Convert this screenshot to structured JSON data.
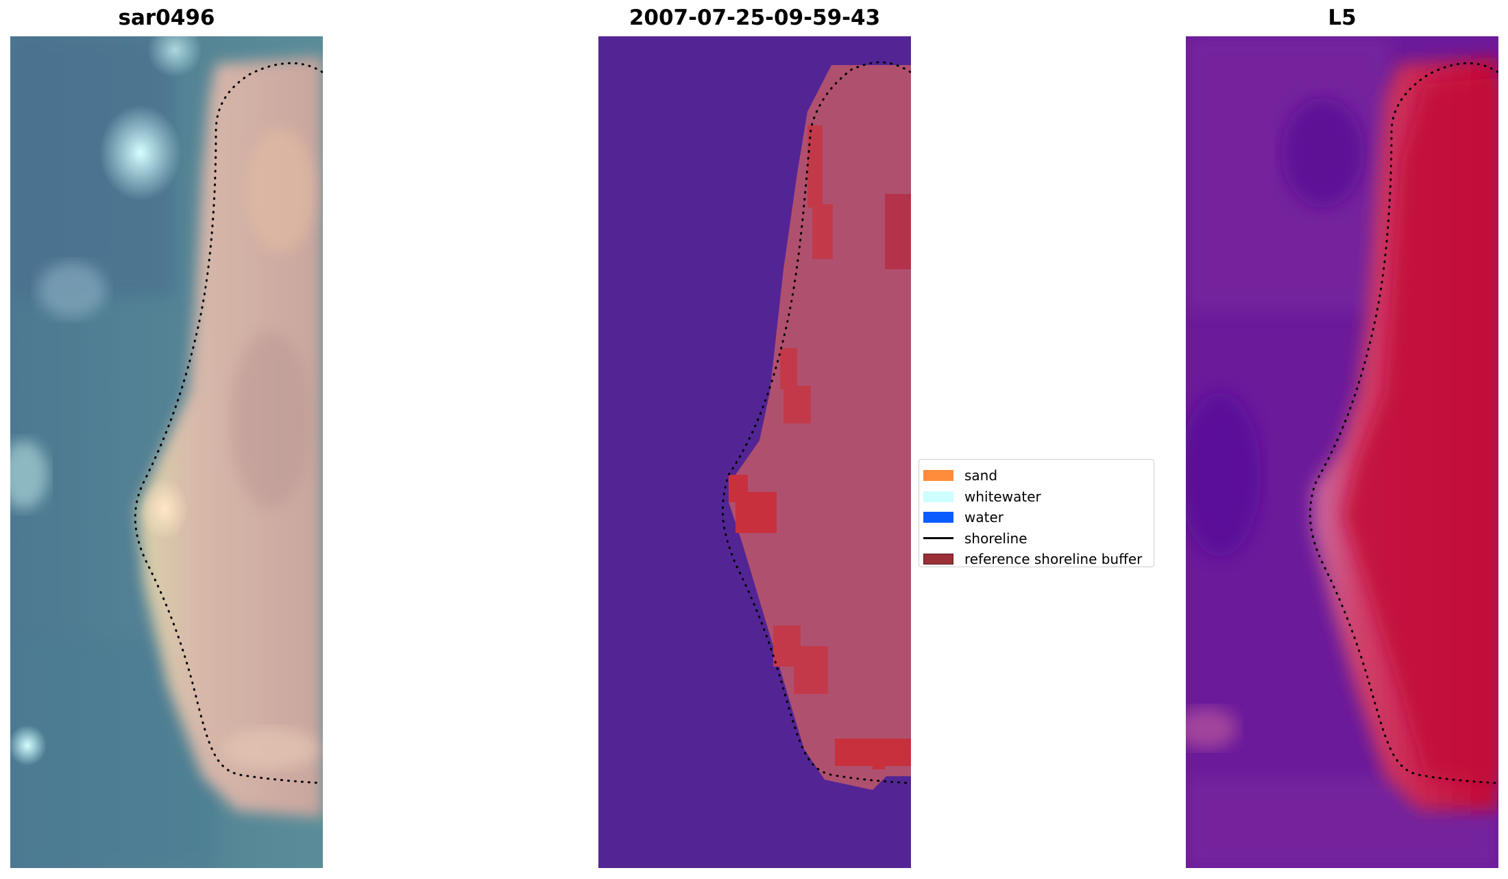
{
  "titles": {
    "left": "sar0496",
    "center": "2007-07-25-09-59-43",
    "right": "L5"
  },
  "legend": {
    "items": [
      {
        "label": "sand",
        "kind": "patch",
        "color": "#ff8c3a"
      },
      {
        "label": "whitewater",
        "kind": "patch",
        "color": "#ccfffe"
      },
      {
        "label": "water",
        "kind": "patch",
        "color": "#0a5cff"
      },
      {
        "label": "shoreline",
        "kind": "line",
        "color": "#000000"
      },
      {
        "label": "reference shoreline buffer",
        "kind": "patch",
        "color": "#9b2f36",
        "edge": "#5a1a1e"
      }
    ]
  },
  "colors": {
    "rgb_water": "#4e7f92",
    "rgb_sand": "#d4b4a6",
    "class_background": "#532594",
    "class_buffer": "#b0506f",
    "class_buffer_red": "#c23a4a",
    "index_low": "#5b0e9a",
    "index_high": "#c0062f",
    "index_mid": "#c86aa0",
    "shoreline": "#000000"
  }
}
